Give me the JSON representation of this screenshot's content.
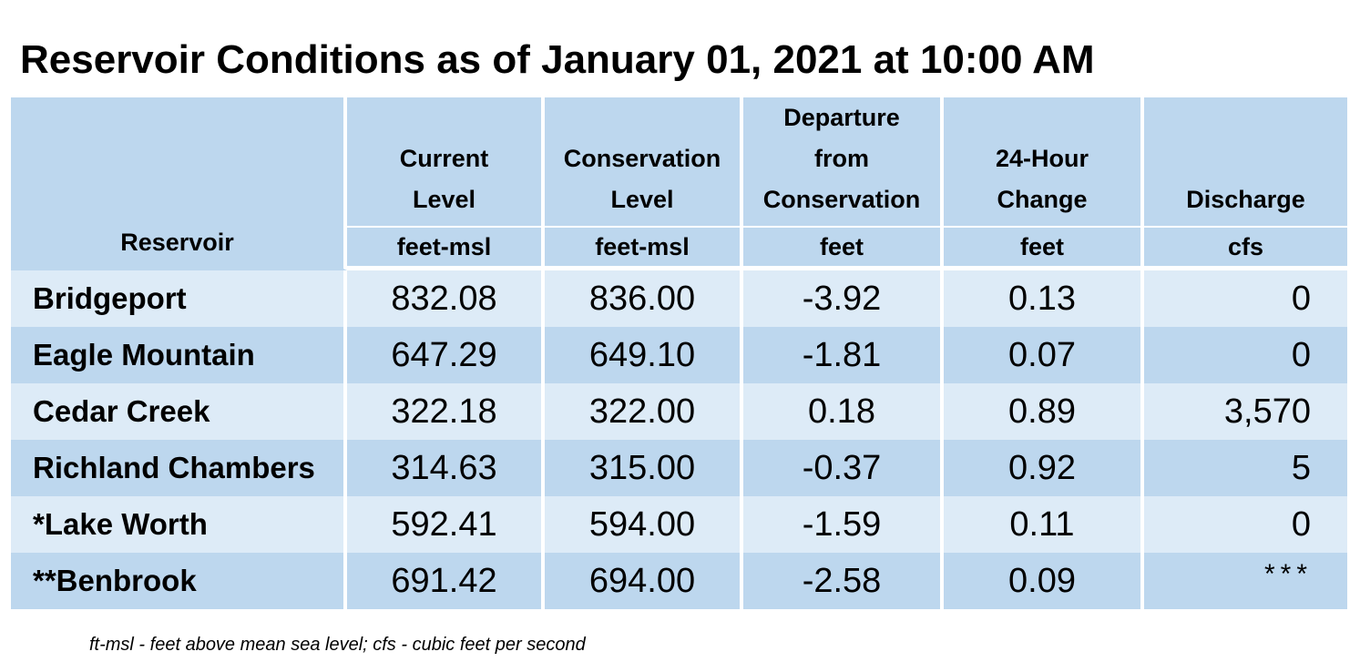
{
  "title": "Reservoir Conditions as of January 01, 2021 at 10:00 AM",
  "header": {
    "reservoir": "Reservoir",
    "columns": [
      {
        "label": "Current\nLevel",
        "unit": "feet-msl"
      },
      {
        "label": "Conservation\nLevel",
        "unit": "feet-msl"
      },
      {
        "label": "Departure\nfrom\nConservation",
        "unit": "feet"
      },
      {
        "label": "24-Hour\nChange",
        "unit": "feet"
      },
      {
        "label": "Discharge",
        "unit": "cfs"
      }
    ]
  },
  "rows": [
    {
      "name": "Bridgeport",
      "current": "832.08",
      "conservation": "836.00",
      "departure": "-3.92",
      "change": "0.13",
      "discharge": "0"
    },
    {
      "name": "Eagle Mountain",
      "current": "647.29",
      "conservation": "649.10",
      "departure": "-1.81",
      "change": "0.07",
      "discharge": "0"
    },
    {
      "name": "Cedar Creek",
      "current": "322.18",
      "conservation": "322.00",
      "departure": "0.18",
      "change": "0.89",
      "discharge": "3,570"
    },
    {
      "name": "Richland Chambers",
      "current": "314.63",
      "conservation": "315.00",
      "departure": "-0.37",
      "change": "0.92",
      "discharge": "5"
    },
    {
      "name": "*Lake Worth",
      "current": "592.41",
      "conservation": "594.00",
      "departure": "-1.59",
      "change": "0.11",
      "discharge": "0"
    },
    {
      "name": "**Benbrook",
      "current": "691.42",
      "conservation": "694.00",
      "departure": "-2.58",
      "change": "0.09",
      "discharge": "***"
    }
  ],
  "footnote": "ft-msl - feet above mean sea level; cfs - cubic feet per second",
  "colors": {
    "header_bg": "#bdd7ee",
    "row_light": "#ddebf7",
    "row_dark": "#bdd7ee"
  }
}
